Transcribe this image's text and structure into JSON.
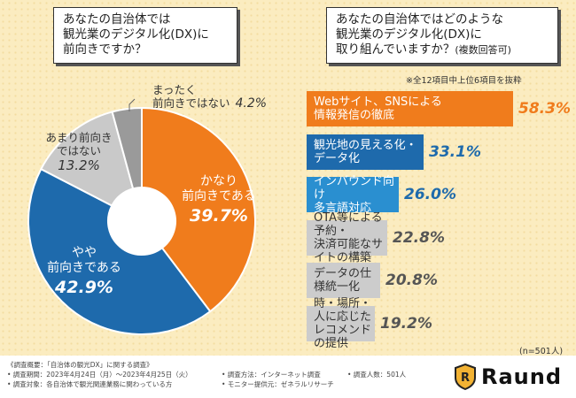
{
  "left_question": "あなたの自治体では\n観光業のデジタル化(DX)に\n前向きですか？",
  "right_question_main": "あなたの自治体ではどのような\n観光業のデジタル化(DX)に\n取り組んでいますか？",
  "right_question_note": "(複数回答可)",
  "top_note": "※全12項目中上位6項目を抜粋",
  "chart_data": [
    {
      "type": "pie",
      "title": "あなたの自治体では観光業のデジタル化(DX)に前向きですか？",
      "categories": [
        "かなり前向きである",
        "やや前向きである",
        "あまり前向きではない",
        "まったく前向きではない"
      ],
      "values": [
        39.7,
        42.9,
        13.2,
        4.2
      ],
      "labels": [
        "かなり\n前向きである",
        "やや\n前向きである",
        "あまり前向き\nではない",
        "まったく\n前向きではない"
      ],
      "pct_text": [
        "39.7%",
        "42.9%",
        "13.2%",
        "4.2%"
      ],
      "colors": [
        "#f07c1c",
        "#1e6aac",
        "#c9c9c9",
        "#9a9a9a"
      ]
    },
    {
      "type": "bar",
      "title": "あなたの自治体ではどのような観光業のデジタル化(DX)に取り組んでいますか？(複数回答可)",
      "categories": [
        "Webサイト、SNSによる\n情報発信の徹底",
        "観光地の見える化・データ化",
        "インバウンド向け\n多言語対応",
        "OTA等による予約・\n決済可能なサイトの構築",
        "データの仕様統一化",
        "時・場所・人に応じた\nレコメンドの提供"
      ],
      "values": [
        58.3,
        33.1,
        26.0,
        22.8,
        20.8,
        19.2
      ],
      "pct_text": [
        "58.3%",
        "33.1%",
        "26.0%",
        "22.8%",
        "20.8%",
        "19.2%"
      ],
      "colors": [
        "#f07c1c",
        "#1e6aac",
        "#2a8fd0",
        "#cccccc",
        "#cccccc",
        "#cccccc"
      ],
      "label_colors": [
        "#ffffff",
        "#ffffff",
        "#ffffff",
        "#333333",
        "#333333",
        "#333333"
      ],
      "pct_colors": [
        "#f07c1c",
        "#1e6aac",
        "#1e6aac",
        "#555555",
        "#555555",
        "#555555"
      ],
      "xlim": [
        0,
        70
      ]
    }
  ],
  "n_label": "(n=501人)",
  "footer": {
    "line1": "《調査概要：「自治体の観光DX」に関する調査》",
    "line2": "• 調査期間：2023年4月24日（月）〜2023年4月25日（火）",
    "line3": "• 調査対象：各自治体で観光関連業務に関わっている方",
    "line4": "• 調査方法：インターネット調査",
    "line5": "• モニター提供元：ゼネラルリサーチ",
    "line6": "• 調査人数：501人"
  },
  "logo_text": "Raund"
}
